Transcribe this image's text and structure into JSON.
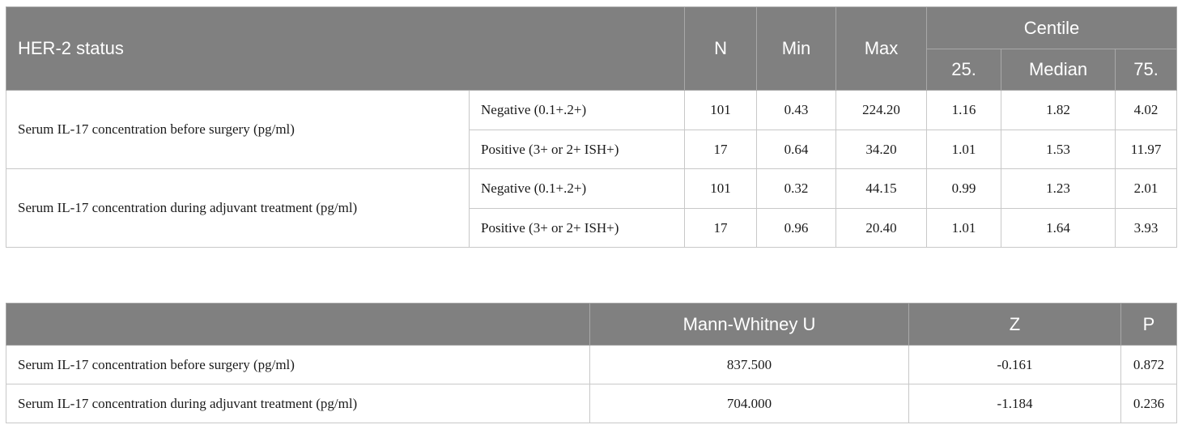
{
  "table1": {
    "header": {
      "her2_status": "HER-2 status",
      "n": "N",
      "min": "Min",
      "max": "Max",
      "centile": "Centile",
      "p25": "25.",
      "median": "Median",
      "p75": "75."
    },
    "groups": [
      {
        "label": "Serum IL-17 concentration before surgery (pg/ml)",
        "rows": [
          {
            "status": "Negative (0.1+.2+)",
            "n": "101",
            "min": "0.43",
            "max": "224.20",
            "p25": "1.16",
            "median": "1.82",
            "p75": "4.02"
          },
          {
            "status": "Positive (3+ or 2+ ISH+)",
            "n": "17",
            "min": "0.64",
            "max": "34.20",
            "p25": "1.01",
            "median": "1.53",
            "p75": "11.97"
          }
        ]
      },
      {
        "label": "Serum IL-17 concentration during adjuvant treatment (pg/ml)",
        "rows": [
          {
            "status": "Negative (0.1+.2+)",
            "n": "101",
            "min": "0.32",
            "max": "44.15",
            "p25": "0.99",
            "median": "1.23",
            "p75": "2.01"
          },
          {
            "status": "Positive (3+ or 2+ ISH+)",
            "n": "17",
            "min": "0.96",
            "max": "20.40",
            "p25": "1.01",
            "median": "1.64",
            "p75": "3.93"
          }
        ]
      }
    ]
  },
  "table2": {
    "header": {
      "blank": "",
      "u": "Mann-Whitney U",
      "z": "Z",
      "p": "P"
    },
    "rows": [
      {
        "label": "Serum IL-17 concentration before surgery (pg/ml)",
        "u": "837.500",
        "z": "-0.161",
        "p": "0.872"
      },
      {
        "label": "Serum IL-17 concentration during adjuvant treatment (pg/ml)",
        "u": "704.000",
        "z": "-1.184",
        "p": "0.236"
      }
    ]
  }
}
